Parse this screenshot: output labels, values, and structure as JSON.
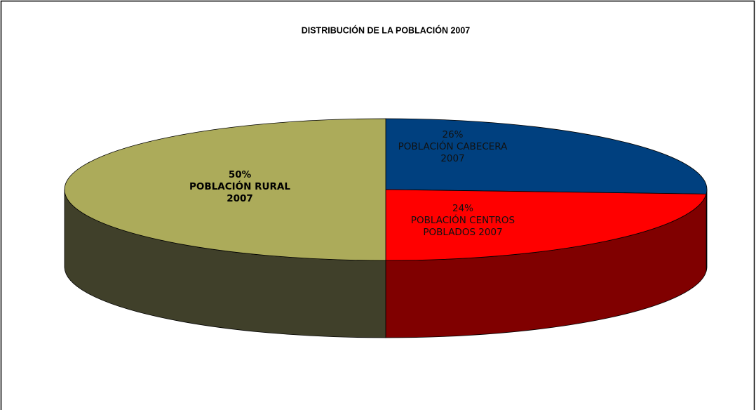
{
  "chart_data": {
    "type": "pie",
    "title": "DISTRIBUCIÓN DE LA POBLACIÓN 2007",
    "categories": [
      "POBLACIÓN CABECERA 2007",
      "POBLACIÓN CENTROS POBLADOS 2007",
      "POBLACIÓN RURAL 2007"
    ],
    "values": [
      26,
      24,
      50
    ],
    "value_labels": [
      "26%",
      "24%",
      "50%"
    ],
    "colors": [
      "#00407f",
      "#ff0000",
      "#acab5a"
    ],
    "side_colors": [
      "#002040",
      "#800000",
      "#40402a"
    ]
  }
}
